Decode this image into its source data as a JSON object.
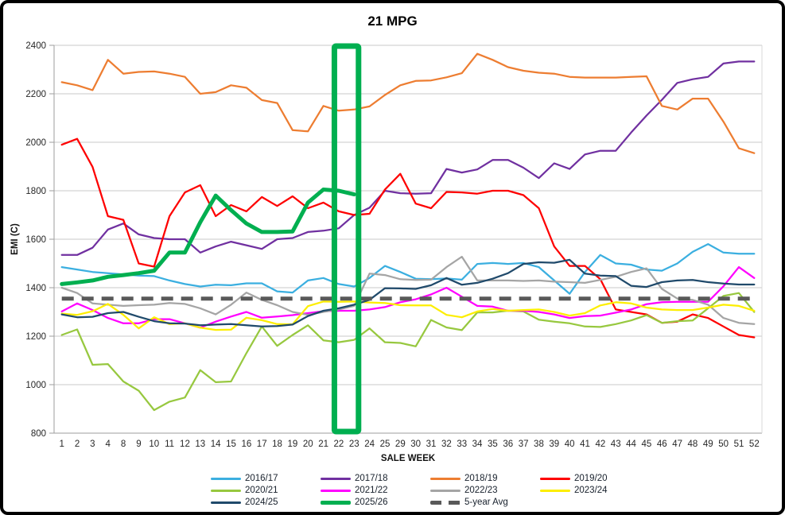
{
  "title": "21 MPG",
  "y_axis": {
    "label": "EMI (C)"
  },
  "x_axis": {
    "label": "SALE WEEK"
  },
  "chart_data": {
    "type": "line",
    "title": "21 MPG",
    "xlabel": "SALE WEEK",
    "ylabel": "EMI (C)",
    "ylim": [
      800,
      2400
    ],
    "yticks": [
      800,
      1000,
      1200,
      1400,
      1600,
      1800,
      2000,
      2200,
      2400
    ],
    "grid": true,
    "legend_position": "bottom",
    "x": [
      "1",
      "2",
      "3",
      "4",
      "8",
      "9",
      "10",
      "11",
      "12",
      "13",
      "14",
      "15",
      "16",
      "17",
      "18",
      "19",
      "20",
      "21",
      "22",
      "23",
      "24",
      "25",
      "29",
      "30",
      "31",
      "32",
      "33",
      "34",
      "35",
      "36",
      "37",
      "38",
      "39",
      "40",
      "41",
      "42",
      "43",
      "44",
      "45",
      "46",
      "47",
      "48",
      "49",
      "50",
      "51",
      "52"
    ],
    "highlight_box": {
      "weeks": [
        "22",
        "23"
      ],
      "color": "#00AF50"
    },
    "series": [
      {
        "name": "2016/17",
        "color": "#3BAFE0",
        "width": 2.25,
        "dashed": false,
        "values": [
          1485,
          1475,
          1465,
          1460,
          1455,
          1450,
          1448,
          1430,
          1415,
          1405,
          1412,
          1410,
          1418,
          1418,
          1385,
          1380,
          1430,
          1440,
          1415,
          1405,
          1440,
          1490,
          1465,
          1437,
          1435,
          1438,
          1433,
          1498,
          1502,
          1498,
          1502,
          1485,
          1430,
          1375,
          1465,
          1535,
          1500,
          1495,
          1475,
          1470,
          1500,
          1548,
          1580,
          1545,
          1540,
          1540
        ]
      },
      {
        "name": "2017/18",
        "color": "#7030A0",
        "width": 2.25,
        "dashed": false,
        "values": [
          1535,
          1535,
          1565,
          1640,
          1665,
          1620,
          1605,
          1600,
          1600,
          1545,
          1570,
          1590,
          1575,
          1560,
          1600,
          1605,
          1630,
          1635,
          1645,
          1700,
          1730,
          1800,
          1790,
          1788,
          1790,
          1890,
          1875,
          1888,
          1927,
          1927,
          1895,
          1852,
          1913,
          1890,
          1950,
          1965,
          1965,
          2040,
          2110,
          2175,
          2245,
          2260,
          2270,
          2325,
          2333,
          2333
        ]
      },
      {
        "name": "2018/19",
        "color": "#ED7D31",
        "width": 2.25,
        "dashed": false,
        "values": [
          2248,
          2235,
          2215,
          2340,
          2283,
          2290,
          2292,
          2283,
          2270,
          2200,
          2207,
          2235,
          2225,
          2174,
          2162,
          2050,
          2045,
          2150,
          2130,
          2135,
          2148,
          2195,
          2235,
          2253,
          2255,
          2268,
          2285,
          2365,
          2340,
          2310,
          2295,
          2287,
          2283,
          2270,
          2267,
          2267,
          2267,
          2270,
          2272,
          2150,
          2135,
          2180,
          2180,
          2085,
          1975,
          1955
        ]
      },
      {
        "name": "2019/20",
        "color": "#FE0000",
        "width": 2.25,
        "dashed": false,
        "values": [
          1990,
          2014,
          1898,
          1695,
          1680,
          1500,
          1487,
          1695,
          1793,
          1823,
          1695,
          1741,
          1715,
          1774,
          1737,
          1777,
          1728,
          1751,
          1715,
          1700,
          1705,
          1805,
          1870,
          1747,
          1728,
          1795,
          1793,
          1788,
          1800,
          1800,
          1782,
          1728,
          1570,
          1490,
          1490,
          1435,
          1310,
          1300,
          1290,
          1255,
          1260,
          1290,
          1275,
          1240,
          1205,
          1195
        ]
      },
      {
        "name": "2020/21",
        "color": "#97C83F",
        "width": 2.25,
        "dashed": false,
        "values": [
          1205,
          1228,
          1082,
          1085,
          1013,
          975,
          895,
          930,
          947,
          1060,
          1010,
          1013,
          1130,
          1240,
          1160,
          1205,
          1245,
          1183,
          1175,
          1185,
          1232,
          1175,
          1172,
          1158,
          1267,
          1236,
          1225,
          1298,
          1298,
          1305,
          1302,
          1268,
          1260,
          1253,
          1240,
          1238,
          1250,
          1265,
          1287,
          1255,
          1262,
          1265,
          1315,
          1366,
          1378,
          1300
        ]
      },
      {
        "name": "2021/22",
        "color": "#FF00FF",
        "width": 2.25,
        "dashed": false,
        "values": [
          1302,
          1335,
          1308,
          1275,
          1253,
          1253,
          1270,
          1270,
          1253,
          1235,
          1260,
          1281,
          1300,
          1276,
          1281,
          1287,
          1295,
          1303,
          1305,
          1305,
          1310,
          1320,
          1340,
          1352,
          1372,
          1400,
          1363,
          1325,
          1322,
          1305,
          1305,
          1300,
          1290,
          1275,
          1283,
          1285,
          1297,
          1310,
          1332,
          1340,
          1342,
          1342,
          1342,
          1406,
          1485,
          1440
        ]
      },
      {
        "name": "2022/23",
        "color": "#A5A5A5",
        "width": 2.25,
        "dashed": false,
        "values": [
          1400,
          1378,
          1335,
          1330,
          1325,
          1328,
          1330,
          1337,
          1333,
          1315,
          1290,
          1330,
          1380,
          1350,
          1328,
          1300,
          1288,
          1300,
          1310,
          1325,
          1458,
          1452,
          1435,
          1432,
          1433,
          1485,
          1528,
          1430,
          1430,
          1430,
          1428,
          1430,
          1425,
          1423,
          1420,
          1432,
          1445,
          1465,
          1480,
          1395,
          1355,
          1350,
          1330,
          1275,
          1255,
          1250
        ]
      },
      {
        "name": "2023/24",
        "color": "#FDEE00",
        "width": 2.25,
        "dashed": false,
        "values": [
          1293,
          1288,
          1303,
          1333,
          1288,
          1232,
          1278,
          1250,
          1253,
          1235,
          1226,
          1227,
          1276,
          1266,
          1250,
          1249,
          1324,
          1343,
          1342,
          1343,
          1339,
          1337,
          1328,
          1327,
          1327,
          1288,
          1278,
          1302,
          1312,
          1305,
          1308,
          1310,
          1300,
          1285,
          1295,
          1327,
          1340,
          1335,
          1318,
          1310,
          1308,
          1308,
          1318,
          1330,
          1325,
          1305
        ]
      },
      {
        "name": "2024/25",
        "color": "#204A6B",
        "width": 2.25,
        "dashed": false,
        "values": [
          1290,
          1278,
          1280,
          1295,
          1300,
          1280,
          1262,
          1253,
          1252,
          1245,
          1248,
          1250,
          1245,
          1240,
          1242,
          1248,
          1283,
          1305,
          1315,
          1330,
          1350,
          1398,
          1397,
          1395,
          1410,
          1440,
          1412,
          1420,
          1437,
          1460,
          1498,
          1505,
          1503,
          1515,
          1458,
          1450,
          1448,
          1408,
          1403,
          1423,
          1430,
          1432,
          1423,
          1417,
          1413,
          1413
        ]
      },
      {
        "name": "2025/26",
        "color": "#00AF50",
        "width": 5,
        "dashed": false,
        "values": [
          1415,
          1422,
          1430,
          1445,
          1452,
          1460,
          1470,
          1545,
          1545,
          1670,
          1780,
          1720,
          1665,
          1630,
          1630,
          1632,
          1751,
          1805,
          1800,
          1785
        ]
      },
      {
        "name": "5-year Avg",
        "color": "#595959",
        "width": 5,
        "dashed": true,
        "values": [
          1355,
          1355,
          1355,
          1355,
          1355,
          1355,
          1355,
          1355,
          1355,
          1355,
          1355,
          1355,
          1355,
          1355,
          1355,
          1355,
          1355,
          1355,
          1355,
          1355,
          1355,
          1355,
          1355,
          1355,
          1355,
          1355,
          1355,
          1355,
          1355,
          1355,
          1355,
          1355,
          1355,
          1355,
          1355,
          1355,
          1355,
          1355,
          1355,
          1355,
          1355,
          1355,
          1355,
          1355,
          1355,
          1355
        ]
      }
    ]
  }
}
